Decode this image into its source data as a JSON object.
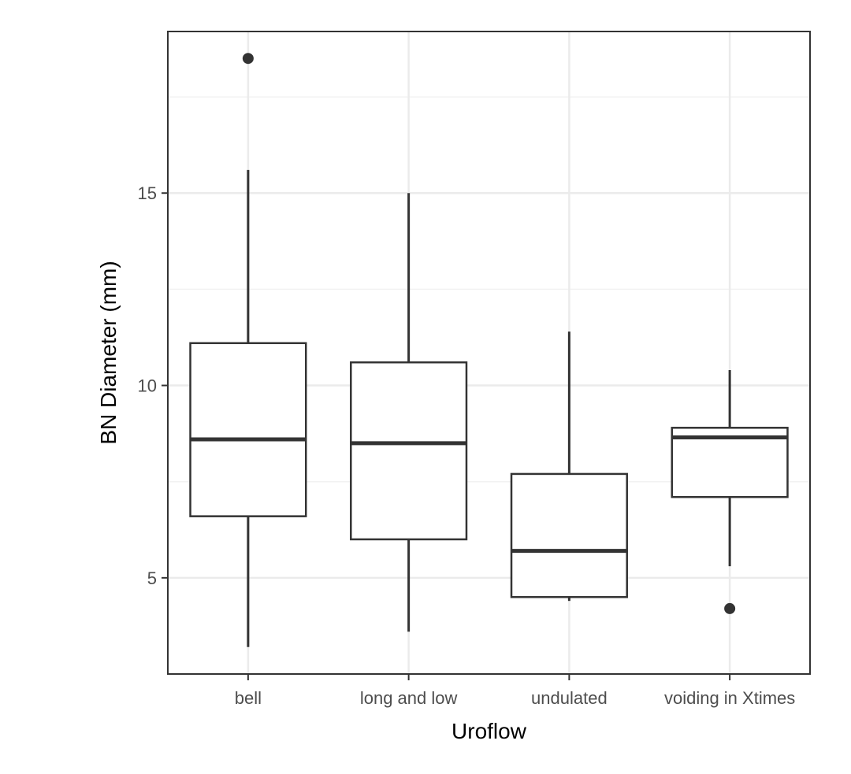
{
  "chart_data": {
    "type": "boxplot",
    "title": "",
    "xlabel": "Uroflow",
    "ylabel": "BN Diameter (mm)",
    "categories": [
      "bell",
      "long and low",
      "undulated",
      "voiding in Xtimes"
    ],
    "boxes": [
      {
        "category": "bell",
        "whisker_low": 3.2,
        "q1": 6.6,
        "median": 8.6,
        "q3": 11.1,
        "whisker_high": 15.6,
        "outliers": [
          18.5
        ]
      },
      {
        "category": "long and low",
        "whisker_low": 3.6,
        "q1": 6.0,
        "median": 8.5,
        "q3": 10.6,
        "whisker_high": 15.0,
        "outliers": []
      },
      {
        "category": "undulated",
        "whisker_low": 4.4,
        "q1": 4.5,
        "median": 5.7,
        "q3": 7.7,
        "whisker_high": 11.4,
        "outliers": []
      },
      {
        "category": "voiding in Xtimes",
        "whisker_low": 5.3,
        "q1": 7.1,
        "median": 8.65,
        "q3": 8.9,
        "whisker_high": 10.4,
        "outliers": [
          4.2
        ]
      }
    ],
    "ylim": [
      2.5,
      19.2
    ],
    "yticks": [
      5,
      10,
      15
    ],
    "ytick_labels": [
      "5",
      "10",
      "15"
    ],
    "grid": true,
    "legend": "none",
    "colors": {
      "box_stroke": "#333333",
      "fill": "#ffffff",
      "grid_major": "#ebebeb",
      "grid_minor": "#f2f2f2",
      "panel_border": "#333333"
    }
  }
}
